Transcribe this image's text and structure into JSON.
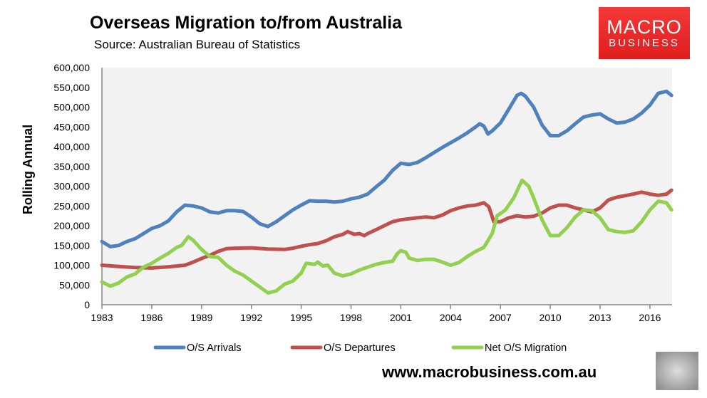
{
  "header": {
    "title": "Overseas Migration to/from Australia",
    "subtitle": "Source: Australian Bureau of Statistics"
  },
  "logo": {
    "line1": "MACRO",
    "line2": "BUSINESS",
    "color": "#e8262a"
  },
  "footer": {
    "url": "www.macrobusiness.com.au"
  },
  "chart_data": {
    "type": "line",
    "title": "Overseas Migration to/from Australia",
    "xlabel": "",
    "ylabel": "Rolling Annual",
    "xlim": [
      1983,
      2017.3
    ],
    "ylim": [
      0,
      600000
    ],
    "x_ticks": [
      "1983",
      "1986",
      "1989",
      "1992",
      "1995",
      "1998",
      "2001",
      "2004",
      "2007",
      "2010",
      "2013",
      "2016"
    ],
    "y_ticks": [
      "0",
      "50,000",
      "100,000",
      "150,000",
      "200,000",
      "250,000",
      "300,000",
      "350,000",
      "400,000",
      "450,000",
      "500,000",
      "550,000",
      "600,000"
    ],
    "grid": false,
    "legend": "bottom",
    "series": [
      {
        "name": "O/S Arrivals",
        "color": "#4f81bd",
        "points": [
          [
            1983,
            160000
          ],
          [
            1983.5,
            147000
          ],
          [
            1984,
            150000
          ],
          [
            1984.5,
            160000
          ],
          [
            1985,
            167000
          ],
          [
            1985.5,
            180000
          ],
          [
            1986,
            193000
          ],
          [
            1986.5,
            200000
          ],
          [
            1987,
            212000
          ],
          [
            1987.5,
            235000
          ],
          [
            1988,
            252000
          ],
          [
            1988.5,
            250000
          ],
          [
            1989,
            245000
          ],
          [
            1989.5,
            235000
          ],
          [
            1990,
            232000
          ],
          [
            1990.5,
            238000
          ],
          [
            1991,
            238000
          ],
          [
            1991.5,
            236000
          ],
          [
            1992,
            222000
          ],
          [
            1992.5,
            205000
          ],
          [
            1993,
            198000
          ],
          [
            1993.5,
            210000
          ],
          [
            1994,
            225000
          ],
          [
            1994.5,
            240000
          ],
          [
            1995,
            252000
          ],
          [
            1995.5,
            263000
          ],
          [
            1996,
            262000
          ],
          [
            1996.5,
            262000
          ],
          [
            1997,
            260000
          ],
          [
            1997.5,
            262000
          ],
          [
            1998,
            268000
          ],
          [
            1998.5,
            272000
          ],
          [
            1999,
            280000
          ],
          [
            1999.5,
            298000
          ],
          [
            2000,
            315000
          ],
          [
            2000.5,
            340000
          ],
          [
            2001,
            358000
          ],
          [
            2001.5,
            355000
          ],
          [
            2002,
            360000
          ],
          [
            2002.5,
            372000
          ],
          [
            2003,
            385000
          ],
          [
            2003.5,
            398000
          ],
          [
            2004,
            410000
          ],
          [
            2004.5,
            422000
          ],
          [
            2005,
            435000
          ],
          [
            2005.5,
            450000
          ],
          [
            2005.75,
            458000
          ],
          [
            2006,
            452000
          ],
          [
            2006.25,
            432000
          ],
          [
            2006.5,
            440000
          ],
          [
            2007,
            460000
          ],
          [
            2007.5,
            495000
          ],
          [
            2008,
            530000
          ],
          [
            2008.25,
            535000
          ],
          [
            2008.5,
            528000
          ],
          [
            2009,
            500000
          ],
          [
            2009.5,
            455000
          ],
          [
            2010,
            428000
          ],
          [
            2010.5,
            428000
          ],
          [
            2011,
            440000
          ],
          [
            2011.5,
            458000
          ],
          [
            2012,
            475000
          ],
          [
            2012.5,
            480000
          ],
          [
            2013,
            483000
          ],
          [
            2013.5,
            470000
          ],
          [
            2014,
            460000
          ],
          [
            2014.5,
            462000
          ],
          [
            2015,
            470000
          ],
          [
            2015.5,
            485000
          ],
          [
            2016,
            505000
          ],
          [
            2016.5,
            535000
          ],
          [
            2017,
            540000
          ],
          [
            2017.3,
            530000
          ]
        ]
      },
      {
        "name": "O/S Departures",
        "color": "#c0504d",
        "points": [
          [
            1983,
            100000
          ],
          [
            1984,
            97000
          ],
          [
            1985,
            94000
          ],
          [
            1986,
            93000
          ],
          [
            1987,
            96000
          ],
          [
            1987.5,
            98000
          ],
          [
            1988,
            100000
          ],
          [
            1988.5,
            108000
          ],
          [
            1989,
            117000
          ],
          [
            1989.5,
            125000
          ],
          [
            1990,
            135000
          ],
          [
            1990.5,
            142000
          ],
          [
            1991,
            143000
          ],
          [
            1992,
            144000
          ],
          [
            1993,
            141000
          ],
          [
            1994,
            140000
          ],
          [
            1994.5,
            143000
          ],
          [
            1995,
            148000
          ],
          [
            1995.5,
            152000
          ],
          [
            1996,
            155000
          ],
          [
            1996.5,
            162000
          ],
          [
            1997,
            172000
          ],
          [
            1997.5,
            178000
          ],
          [
            1997.8,
            185000
          ],
          [
            1998.2,
            178000
          ],
          [
            1998.5,
            180000
          ],
          [
            1998.8,
            175000
          ],
          [
            1999,
            180000
          ],
          [
            1999.5,
            190000
          ],
          [
            2000,
            200000
          ],
          [
            2000.5,
            210000
          ],
          [
            2001,
            215000
          ],
          [
            2002,
            220000
          ],
          [
            2002.5,
            222000
          ],
          [
            2003,
            220000
          ],
          [
            2003.5,
            227000
          ],
          [
            2004,
            238000
          ],
          [
            2004.5,
            245000
          ],
          [
            2005,
            250000
          ],
          [
            2005.5,
            252000
          ],
          [
            2006,
            258000
          ],
          [
            2006.3,
            248000
          ],
          [
            2006.6,
            210000
          ],
          [
            2007,
            210000
          ],
          [
            2007.5,
            220000
          ],
          [
            2008,
            225000
          ],
          [
            2008.5,
            222000
          ],
          [
            2009,
            224000
          ],
          [
            2009.5,
            232000
          ],
          [
            2010,
            245000
          ],
          [
            2010.5,
            252000
          ],
          [
            2011,
            252000
          ],
          [
            2011.5,
            245000
          ],
          [
            2012,
            240000
          ],
          [
            2012.5,
            235000
          ],
          [
            2013,
            245000
          ],
          [
            2013.5,
            265000
          ],
          [
            2014,
            272000
          ],
          [
            2014.5,
            276000
          ],
          [
            2015,
            280000
          ],
          [
            2015.5,
            285000
          ],
          [
            2016,
            280000
          ],
          [
            2016.5,
            277000
          ],
          [
            2017,
            280000
          ],
          [
            2017.3,
            290000
          ]
        ]
      },
      {
        "name": "Net O/S Migration",
        "color": "#92d050",
        "points": [
          [
            1983,
            58000
          ],
          [
            1983.5,
            47000
          ],
          [
            1984,
            55000
          ],
          [
            1984.5,
            70000
          ],
          [
            1985,
            78000
          ],
          [
            1985.5,
            95000
          ],
          [
            1986,
            105000
          ],
          [
            1986.5,
            118000
          ],
          [
            1987,
            130000
          ],
          [
            1987.5,
            145000
          ],
          [
            1987.8,
            150000
          ],
          [
            1988.2,
            172000
          ],
          [
            1988.5,
            163000
          ],
          [
            1989,
            140000
          ],
          [
            1989.5,
            122000
          ],
          [
            1990,
            120000
          ],
          [
            1990.5,
            100000
          ],
          [
            1991,
            85000
          ],
          [
            1991.5,
            75000
          ],
          [
            1992,
            60000
          ],
          [
            1992.5,
            45000
          ],
          [
            1993,
            30000
          ],
          [
            1993.5,
            35000
          ],
          [
            1994,
            52000
          ],
          [
            1994.5,
            60000
          ],
          [
            1995,
            80000
          ],
          [
            1995.3,
            105000
          ],
          [
            1995.8,
            102000
          ],
          [
            1996,
            108000
          ],
          [
            1996.3,
            98000
          ],
          [
            1996.6,
            100000
          ],
          [
            1997,
            80000
          ],
          [
            1997.5,
            73000
          ],
          [
            1998,
            78000
          ],
          [
            1998.5,
            88000
          ],
          [
            1999,
            95000
          ],
          [
            1999.5,
            102000
          ],
          [
            2000,
            107000
          ],
          [
            2000.5,
            110000
          ],
          [
            2000.8,
            130000
          ],
          [
            2001,
            137000
          ],
          [
            2001.3,
            133000
          ],
          [
            2001.5,
            118000
          ],
          [
            2002,
            112000
          ],
          [
            2002.5,
            115000
          ],
          [
            2003,
            115000
          ],
          [
            2003.5,
            108000
          ],
          [
            2004,
            100000
          ],
          [
            2004.5,
            107000
          ],
          [
            2005,
            122000
          ],
          [
            2005.5,
            135000
          ],
          [
            2006,
            145000
          ],
          [
            2006.5,
            180000
          ],
          [
            2006.8,
            225000
          ],
          [
            2007.3,
            240000
          ],
          [
            2007.8,
            270000
          ],
          [
            2008.3,
            315000
          ],
          [
            2008.7,
            300000
          ],
          [
            2009,
            270000
          ],
          [
            2009.5,
            215000
          ],
          [
            2010,
            175000
          ],
          [
            2010.5,
            175000
          ],
          [
            2011,
            195000
          ],
          [
            2011.5,
            222000
          ],
          [
            2012,
            240000
          ],
          [
            2012.5,
            238000
          ],
          [
            2013,
            220000
          ],
          [
            2013.5,
            190000
          ],
          [
            2014,
            185000
          ],
          [
            2014.5,
            183000
          ],
          [
            2015,
            187000
          ],
          [
            2015.5,
            210000
          ],
          [
            2016,
            240000
          ],
          [
            2016.5,
            262000
          ],
          [
            2017,
            258000
          ],
          [
            2017.3,
            240000
          ]
        ]
      }
    ]
  }
}
